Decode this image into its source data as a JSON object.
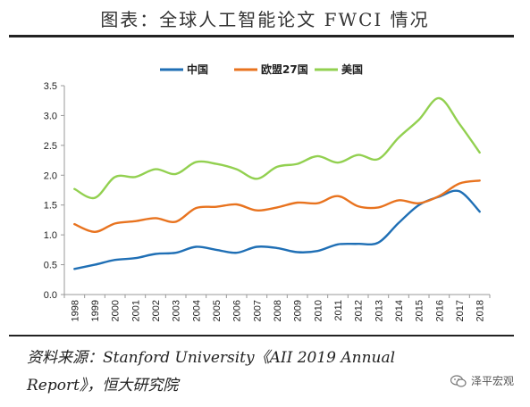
{
  "header": {
    "title": "图表：全球人工智能论文 FWCI 情况"
  },
  "footer": {
    "source_line1": "资料来源：Stanford University《AII 2019 Annual",
    "source_line2": "Report》，恒大研究院"
  },
  "watermark": {
    "text": "泽平宏观"
  },
  "colors": {
    "china": "#1f6fb5",
    "eu27": "#e8731f",
    "usa": "#92d050",
    "axis": "#999999"
  },
  "chart_data": {
    "type": "line",
    "title": "全球人工智能论文 FWCI 情况",
    "xlabel": "",
    "ylabel": "",
    "x": [
      "1998",
      "1999",
      "2000",
      "2001",
      "2002",
      "2003",
      "2004",
      "2005",
      "2006",
      "2007",
      "2008",
      "2009",
      "2010",
      "2011",
      "2012",
      "2013",
      "2014",
      "2015",
      "2016",
      "2017",
      "2018"
    ],
    "ylim": [
      0.0,
      3.5
    ],
    "yticks": [
      "0.0",
      "0.5",
      "1.0",
      "1.5",
      "2.0",
      "2.5",
      "3.0",
      "3.5"
    ],
    "legend_position": "top",
    "grid": false,
    "series": [
      {
        "name": "中国",
        "color": "#1f6fb5",
        "values": [
          0.43,
          0.5,
          0.58,
          0.61,
          0.68,
          0.7,
          0.8,
          0.75,
          0.7,
          0.8,
          0.78,
          0.71,
          0.73,
          0.84,
          0.85,
          0.87,
          1.2,
          1.5,
          1.64,
          1.73,
          1.39
        ]
      },
      {
        "name": "欧盟27国",
        "color": "#e8731f",
        "values": [
          1.18,
          1.05,
          1.19,
          1.23,
          1.28,
          1.22,
          1.45,
          1.47,
          1.51,
          1.41,
          1.46,
          1.54,
          1.53,
          1.65,
          1.48,
          1.46,
          1.58,
          1.53,
          1.65,
          1.86,
          1.91
        ]
      },
      {
        "name": "美国",
        "color": "#92d050",
        "values": [
          1.77,
          1.62,
          1.97,
          1.97,
          2.1,
          2.02,
          2.22,
          2.19,
          2.1,
          1.94,
          2.14,
          2.19,
          2.32,
          2.21,
          2.34,
          2.27,
          2.63,
          2.93,
          3.29,
          2.86,
          2.38
        ]
      }
    ]
  }
}
